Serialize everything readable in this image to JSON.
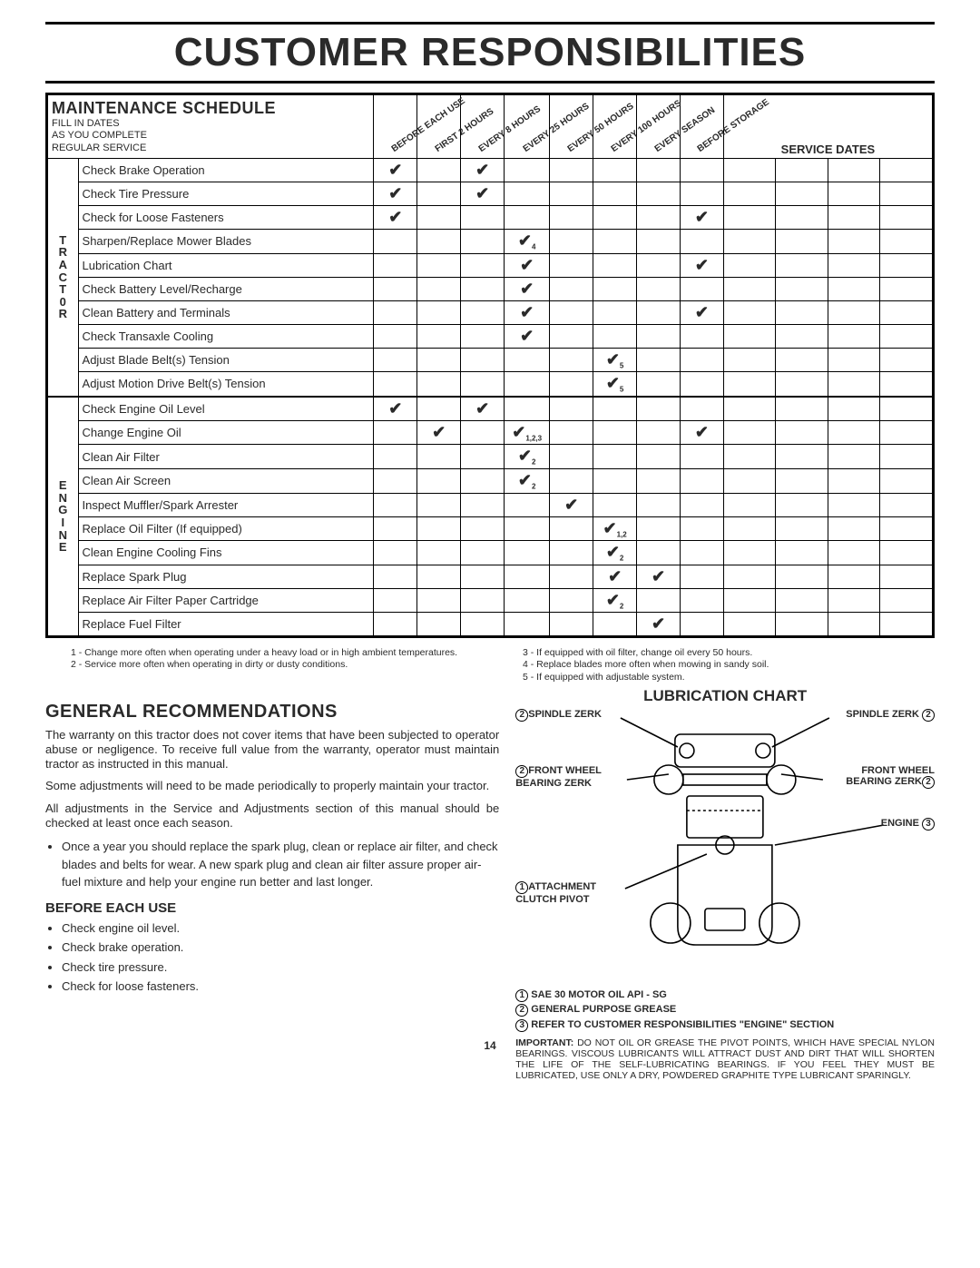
{
  "doc": {
    "title": "CUSTOMER RESPONSIBILITIES",
    "page_number": "14"
  },
  "schedule": {
    "header_title": "MAINTENANCE SCHEDULE",
    "header_sub": "FILL IN DATES\nAS YOU COMPLETE\nREGULAR SERVICE",
    "interval_cols": [
      "BEFORE EACH USE",
      "FIRST 2 HOURS",
      "EVERY 8 HOURS",
      "EVERY 25 HOURS",
      "EVERY 50 HOURS",
      "EVERY 100 HOURS",
      "EVERY SEASON",
      "BEFORE STORAGE"
    ],
    "service_dates_label": "SERVICE DATES",
    "service_date_cols": 4,
    "groups": [
      {
        "label": "T\nR\nA\nC\nT\n0\nR",
        "rows": [
          {
            "task": "Check Brake Operation",
            "marks": [
              "✔",
              "",
              "✔",
              "",
              "",
              "",
              "",
              ""
            ]
          },
          {
            "task": "Check Tire Pressure",
            "marks": [
              "✔",
              "",
              "✔",
              "",
              "",
              "",
              "",
              ""
            ]
          },
          {
            "task": "Check for Loose Fasteners",
            "marks": [
              "✔",
              "",
              "",
              "",
              "",
              "",
              "",
              "✔"
            ]
          },
          {
            "task": "Sharpen/Replace Mower Blades",
            "marks": [
              "",
              "",
              "",
              "✔",
              "",
              "",
              "",
              ""
            ],
            "sub": [
              "",
              "",
              "",
              "4",
              "",
              "",
              "",
              ""
            ]
          },
          {
            "task": "Lubrication Chart",
            "marks": [
              "",
              "",
              "",
              "✔",
              "",
              "",
              "",
              "✔"
            ]
          },
          {
            "task": "Check Battery Level/Recharge",
            "marks": [
              "",
              "",
              "",
              "✔",
              "",
              "",
              "",
              ""
            ]
          },
          {
            "task": "Clean Battery and Terminals",
            "marks": [
              "",
              "",
              "",
              "✔",
              "",
              "",
              "",
              "✔"
            ]
          },
          {
            "task": "Check Transaxle Cooling",
            "marks": [
              "",
              "",
              "",
              "✔",
              "",
              "",
              "",
              ""
            ]
          },
          {
            "task": "Adjust Blade Belt(s) Tension",
            "marks": [
              "",
              "",
              "",
              "",
              "",
              "✔",
              "",
              ""
            ],
            "sub": [
              "",
              "",
              "",
              "",
              "",
              "5",
              "",
              ""
            ]
          },
          {
            "task": "Adjust Motion Drive Belt(s) Tension",
            "marks": [
              "",
              "",
              "",
              "",
              "",
              "✔",
              "",
              ""
            ],
            "sub": [
              "",
              "",
              "",
              "",
              "",
              "5",
              "",
              ""
            ]
          }
        ]
      },
      {
        "label": "E\nN\nG\nI\nN\nE",
        "rows": [
          {
            "task": "Check Engine Oil Level",
            "marks": [
              "✔",
              "",
              "✔",
              "",
              "",
              "",
              "",
              ""
            ]
          },
          {
            "task": "Change Engine Oil",
            "marks": [
              "",
              "✔",
              "",
              "✔",
              "",
              "",
              "",
              "✔"
            ],
            "sub": [
              "",
              "",
              "",
              "1,2,3",
              "",
              "",
              "",
              ""
            ]
          },
          {
            "task": "Clean Air Filter",
            "marks": [
              "",
              "",
              "",
              "✔",
              "",
              "",
              "",
              ""
            ],
            "sub": [
              "",
              "",
              "",
              "2",
              "",
              "",
              "",
              ""
            ]
          },
          {
            "task": "Clean Air Screen",
            "marks": [
              "",
              "",
              "",
              "✔",
              "",
              "",
              "",
              ""
            ],
            "sub": [
              "",
              "",
              "",
              "2",
              "",
              "",
              "",
              ""
            ]
          },
          {
            "task": "Inspect Muffler/Spark Arrester",
            "marks": [
              "",
              "",
              "",
              "",
              "✔",
              "",
              "",
              ""
            ]
          },
          {
            "task": "Replace Oil Filter (If equipped)",
            "marks": [
              "",
              "",
              "",
              "",
              "",
              "✔",
              "",
              ""
            ],
            "sub": [
              "",
              "",
              "",
              "",
              "",
              "1,2",
              "",
              ""
            ]
          },
          {
            "task": "Clean Engine Cooling Fins",
            "marks": [
              "",
              "",
              "",
              "",
              "",
              "✔",
              "",
              ""
            ],
            "sub": [
              "",
              "",
              "",
              "",
              "",
              "2",
              "",
              ""
            ]
          },
          {
            "task": "Replace Spark Plug",
            "marks": [
              "",
              "",
              "",
              "",
              "",
              "✔",
              "✔",
              ""
            ]
          },
          {
            "task": "Replace Air Filter Paper Cartridge",
            "marks": [
              "",
              "",
              "",
              "",
              "",
              "✔",
              "",
              ""
            ],
            "sub": [
              "",
              "",
              "",
              "",
              "",
              "2",
              "",
              ""
            ]
          },
          {
            "task": "Replace Fuel Filter",
            "marks": [
              "",
              "",
              "",
              "",
              "",
              "",
              "✔",
              ""
            ]
          }
        ]
      }
    ],
    "footnotes_left": [
      "1 - Change more often when operating under a heavy load or in high ambient temperatures.",
      "2 - Service more often when operating in dirty or dusty conditions."
    ],
    "footnotes_right": [
      "3 - If equipped with oil filter, change oil every 50 hours.",
      "4 - Replace blades more often when mowing in sandy soil.",
      "5 - If equipped with adjustable system."
    ]
  },
  "general": {
    "title": "GENERAL RECOMMENDATIONS",
    "p1": "The warranty on this tractor does not cover items that have been subjected to operator abuse or negligence. To receive full value from the warranty, operator must maintain tractor as instructed in this manual.",
    "p2": "Some adjustments will need to be made periodically to properly maintain your tractor.",
    "p3": "All adjustments in the Service and Adjustments section of this manual should be checked at least once each season.",
    "bullet1": "Once a year you should replace the spark plug, clean or replace air filter, and check blades and belts for wear. A new spark plug and clean air filter assure proper air-fuel mixture and help your engine run better and last longer.",
    "before_title": "BEFORE EACH USE",
    "before_items": [
      "Check engine oil level.",
      "Check brake operation.",
      "Check tire pressure.",
      "Check for loose fasteners."
    ]
  },
  "chart": {
    "title": "LUBRICATION CHART",
    "labels": {
      "spindle_zerk_l": "SPINDLE ZERK",
      "spindle_zerk_r": "SPINDLE ZERK",
      "front_wheel_l": "FRONT WHEEL\nBEARING ZERK",
      "front_wheel_r": "FRONT WHEEL\nBEARING ZERK",
      "engine": "ENGINE",
      "attach": "ATTACHMENT\nCLUTCH PIVOT"
    },
    "nums": {
      "spindle": "2",
      "front": "2",
      "engine": "3",
      "attach": "1"
    },
    "legend": [
      "SAE 30 MOTOR OIL API - SG",
      "GENERAL PURPOSE GREASE",
      "REFER TO CUSTOMER RESPONSIBILITIES \"ENGINE\" SECTION"
    ],
    "important_label": "IMPORTANT:",
    "important": "DO NOT OIL OR GREASE THE PIVOT POINTS, WHICH HAVE SPECIAL NYLON BEARINGS. VISCOUS LUBRICANTS WILL ATTRACT DUST AND DIRT THAT WILL SHORTEN THE LIFE OF THE SELF-LUBRICATING BEARINGS. IF YOU FEEL THEY MUST BE LUBRICATED, USE ONLY A DRY, POWDERED GRAPHITE TYPE LUBRICANT SPARINGLY."
  }
}
